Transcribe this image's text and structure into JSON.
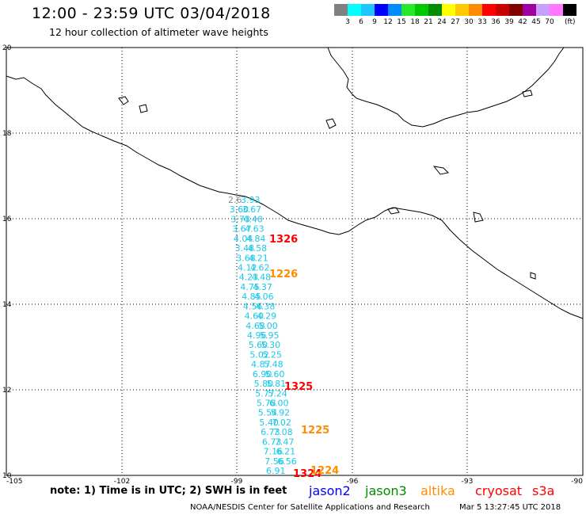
{
  "title": "12:00 - 23:59 UTC 03/04/2018",
  "subtitle": "12 hour collection of altimeter wave heights",
  "legend": {
    "unit": "(ft)",
    "colors": [
      "#808080",
      "#00ffff",
      "#1ec8ff",
      "#0000ff",
      "#008cff",
      "#28e628",
      "#00c800",
      "#008c00",
      "#ffff00",
      "#ffc800",
      "#ff8c00",
      "#ff0000",
      "#c80000",
      "#820000",
      "#a000a0",
      "#c8a0ff",
      "#ff78ff",
      "#000000"
    ],
    "labels": [
      "3",
      "6",
      "9",
      "12",
      "15",
      "18",
      "21",
      "24",
      "27",
      "30",
      "33",
      "36",
      "39",
      "42",
      "45",
      "70"
    ]
  },
  "axes": {
    "lon_labels": [
      "-105",
      "-102",
      "-99",
      "-96",
      "-93",
      "-90"
    ],
    "lat_labels": [
      "20",
      "18",
      "16",
      "14",
      "12",
      "10"
    ]
  },
  "track_values": [
    "2.6",
    "3.93",
    "3.60",
    "3.67",
    "3.73",
    "4.40",
    "3.67",
    "4.63",
    "4.04",
    "4.84",
    "3.48",
    "4.58",
    "3.68",
    "4.21",
    "4.12",
    "4.62",
    "4.23",
    "4.48",
    "4.75",
    "4.37",
    "4.85",
    "4.06",
    "4.56",
    "4.38",
    "4.60",
    "4.29",
    "4.68",
    "5.00",
    "4.96",
    "5.95",
    "5.60",
    "5.30",
    "5.02",
    "5.25",
    "4.87",
    "5.48",
    "6.90",
    "5.60",
    "5.80",
    "5.81",
    "5.77",
    "5.24",
    "5.78",
    "6.00",
    "5.54",
    "5.92",
    "5.40",
    "7.02",
    "6.73",
    "7.08",
    "6.73",
    "7.47",
    "7.16",
    "6.21",
    "7.56",
    "6.56",
    "6.91"
  ],
  "times": [
    {
      "label": "1326",
      "color": "#ff0000"
    },
    {
      "label": "1226",
      "color": "#ff8c00"
    },
    {
      "label": "1325",
      "color": "#ff0000"
    },
    {
      "label": "1225",
      "color": "#ff8c00"
    },
    {
      "label": "1324",
      "color": "#ff0000"
    },
    {
      "label": "1224",
      "color": "#ff8c00"
    }
  ],
  "note": "note: 1) Time is in UTC; 2) SWH is in feet",
  "satellites": [
    {
      "name": "jason2",
      "color": "#0000ff"
    },
    {
      "name": "jason3",
      "color": "#008c00"
    },
    {
      "name": "altika",
      "color": "#ff8c00"
    },
    {
      "name": "cryosat",
      "color": "#ff0000"
    },
    {
      "name": "s3a",
      "color": "#ff0000"
    }
  ],
  "footer": "NOAA/NESDIS Center for Satellite Applications and Research",
  "footer_date": "Mar  5 13:27:45 UTC 2018"
}
